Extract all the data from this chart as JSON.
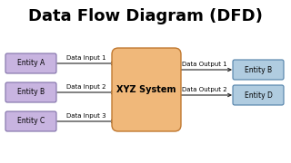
{
  "title": "Data Flow Diagram (DFD)",
  "title_fontsize": 13,
  "title_fontweight": "bold",
  "bg_color": "#ffffff",
  "left_entities": [
    "Entity A",
    "Entity B",
    "Entity C"
  ],
  "left_entity_facecolor": "#c8b4e0",
  "left_entity_edgecolor": "#8070a8",
  "right_entities": [
    "Entity B",
    "Entity D"
  ],
  "right_entity_facecolor": "#b0cce0",
  "right_entity_edgecolor": "#5080a8",
  "center_label": "XYZ System",
  "center_facecolor": "#f0b87a",
  "center_edgecolor": "#c07830",
  "input_labels": [
    "Data Input 1",
    "Data Input 2",
    "Data Input 3"
  ],
  "output_labels": [
    "Data Output 1",
    "Data Output 2"
  ],
  "arrow_color": "#222222",
  "text_color": "#000000",
  "label_fontsize": 5.0,
  "entity_fontsize": 5.5
}
